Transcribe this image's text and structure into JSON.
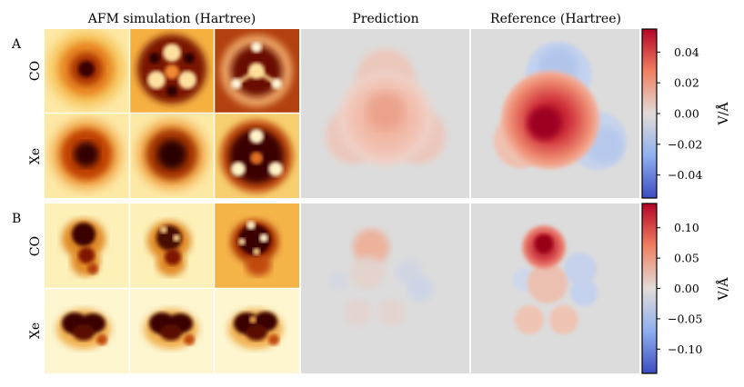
{
  "headers": {
    "afm": "AFM simulation (Hartree)",
    "prediction": "Prediction",
    "reference": "Reference (Hartree)"
  },
  "panels": [
    {
      "letter": "A",
      "rows": [
        "CO",
        "Xe"
      ],
      "colorbar": {
        "label": "V/Å",
        "ticks": [
          "0.04",
          "0.02",
          "0.00",
          "−0.02",
          "−0.04"
        ],
        "tick_values": [
          0.04,
          0.02,
          0.0,
          -0.02,
          -0.04
        ],
        "range": [
          -0.055,
          0.055
        ]
      }
    },
    {
      "letter": "B",
      "rows": [
        "CO",
        "Xe"
      ],
      "colorbar": {
        "label": "V/Å",
        "ticks": [
          "0.10",
          "0.05",
          "0.00",
          "−0.05",
          "−0.10"
        ],
        "tick_values": [
          0.1,
          0.05,
          0.0,
          -0.05,
          -0.1
        ],
        "range": [
          -0.14,
          0.14
        ]
      }
    }
  ],
  "colors": {
    "afm_light": "#fdf6d0",
    "afm_mid": "#f0a53a",
    "afm_dark": "#4a0a00",
    "map_neutral": "#dcdcdc",
    "map_positive": "#b2182b",
    "map_negative": "#2166ac"
  }
}
